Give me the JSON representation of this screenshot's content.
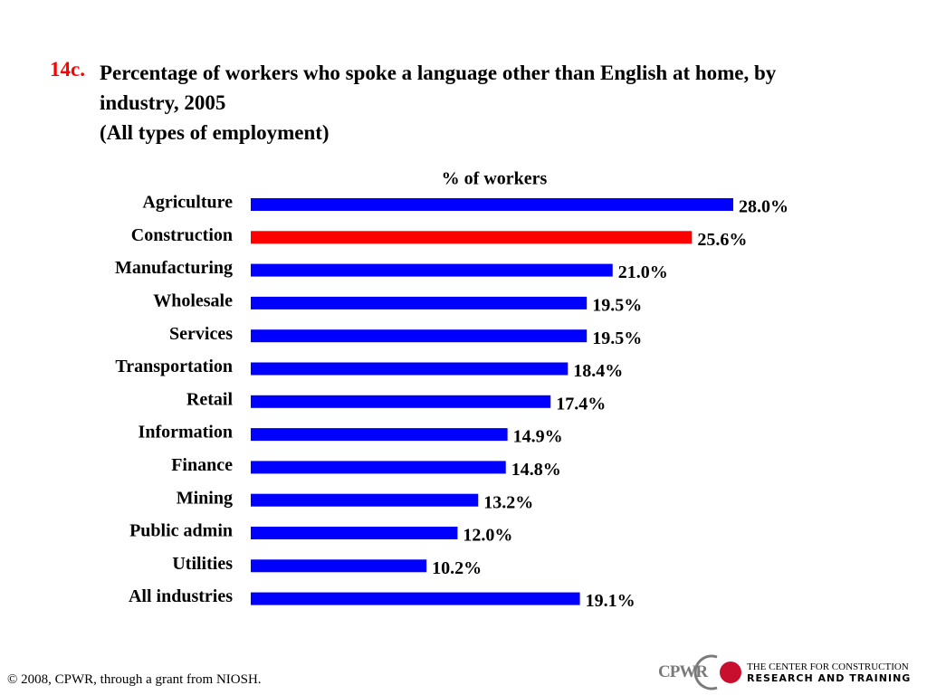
{
  "chart_data": {
    "type": "bar",
    "orientation": "horizontal",
    "title_number": "14c.",
    "title": "Percentage of workers who spoke a language other than English at home, by industry, 2005",
    "subtitle": "(All types of employment)",
    "axis_label": "% of workers",
    "categories": [
      "Agriculture",
      "Construction",
      "Manufacturing",
      "Wholesale",
      "Services",
      "Transportation",
      "Retail",
      "Information",
      "Finance",
      "Mining",
      "Public admin",
      "Utilities",
      "All industries"
    ],
    "values": [
      28.0,
      25.6,
      21.0,
      19.5,
      19.5,
      18.4,
      17.4,
      14.9,
      14.8,
      13.2,
      12.0,
      10.2,
      19.1
    ],
    "value_labels": [
      "28.0%",
      "25.6%",
      "21.0%",
      "19.5%",
      "19.5%",
      "18.4%",
      "17.4%",
      "14.9%",
      "14.8%",
      "13.2%",
      "12.0%",
      "10.2%",
      "19.1%"
    ],
    "colors": [
      "#0000ff",
      "#ff0000",
      "#0000ff",
      "#0000ff",
      "#0000ff",
      "#0000ff",
      "#0000ff",
      "#0000ff",
      "#0000ff",
      "#0000ff",
      "#0000ff",
      "#0000ff",
      "#0000ff"
    ]
  },
  "footer": "© 2008, CPWR, through a grant from NIOSH.",
  "logo": {
    "short": "CPWR",
    "line1": "THE CENTER FOR CONSTRUCTION",
    "line2": "RESEARCH AND TRAINING"
  }
}
